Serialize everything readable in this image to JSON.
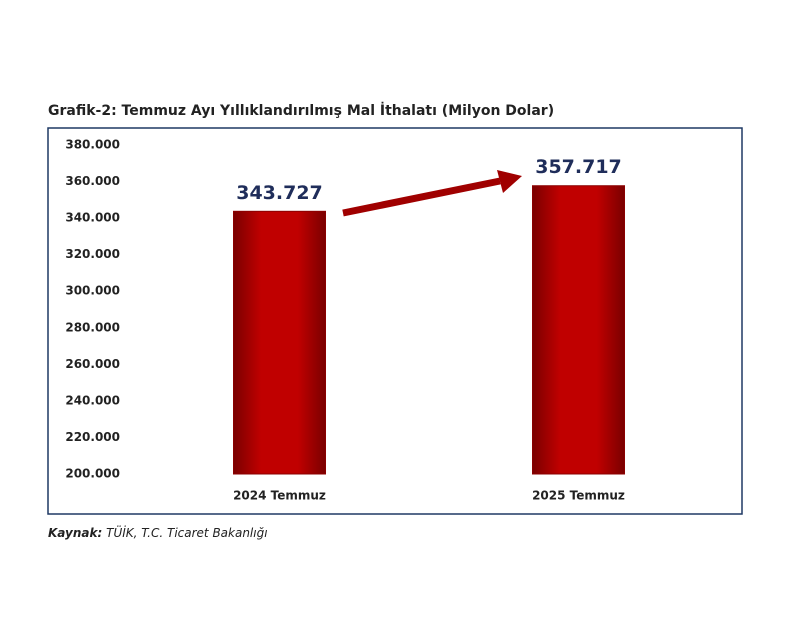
{
  "chart_data": {
    "type": "bar",
    "title": "Grafik-2: Temmuz Ayı Yıllıklandırılmış Mal İthalatı (Milyon Dolar)",
    "categories": [
      "2024 Temmuz",
      "2025 Temmuz"
    ],
    "values": [
      343727,
      357717
    ],
    "value_labels": [
      "343.727",
      "357.717"
    ],
    "color": "#c00000",
    "ylim": [
      200000,
      380000
    ],
    "yticks": [
      {
        "value": 200000,
        "label": "200.000"
      },
      {
        "value": 220000,
        "label": "220.000"
      },
      {
        "value": 240000,
        "label": "240.000"
      },
      {
        "value": 260000,
        "label": "260.000"
      },
      {
        "value": 280000,
        "label": "280.000"
      },
      {
        "value": 300000,
        "label": "300.000"
      },
      {
        "value": 320000,
        "label": "320.000"
      },
      {
        "value": 340000,
        "label": "340.000"
      },
      {
        "value": 360000,
        "label": "360.000"
      },
      {
        "value": 380000,
        "label": "380.000"
      }
    ],
    "grid": false
  },
  "source": {
    "label": "Kaynak:",
    "text": "TÜİK, T.C. Ticaret Bakanlığı"
  }
}
